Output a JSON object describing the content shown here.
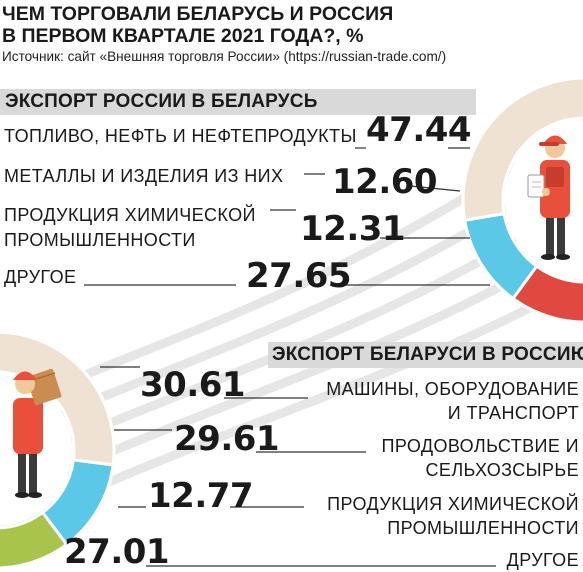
{
  "title_line1": "ЧЕМ ТОРГОВАЛИ БЕЛАРУСЬ И РОССИЯ",
  "title_line2": "В ПЕРВОМ КВАРТАЛЕ 2021 ГОДА?, %",
  "source": "Источник: сайт «Внешняя торговля России» (https://russian-trade.com/)",
  "chart_data": [
    {
      "type": "pie",
      "title": "ЭКСПОРТ РОССИИ В БЕЛАРУСЬ",
      "unit": "%",
      "categories": [
        "ТОПЛИВО, НЕФТЬ И НЕФТЕПРОДУКТЫ",
        "МЕТАЛЛЫ И ИЗДЕЛИЯ ИЗ НИХ",
        "ПРОДУКЦИЯ ХИМИЧЕСКОЙ ПРОМЫШЛЕННОСТИ",
        "ДРУГОЕ"
      ],
      "category_lines": [
        [
          "ТОПЛИВО, НЕФТЬ И НЕФТЕПРОДУКТЫ"
        ],
        [
          "МЕТАЛЛЫ И ИЗДЕЛИЯ ИЗ НИХ"
        ],
        [
          "ПРОДУКЦИЯ ХИМИЧЕСКОЙ",
          "ПРОМЫШЛЕННОСТИ"
        ],
        [
          "ДРУГОЕ"
        ]
      ],
      "labels": [
        "47.44",
        "12.60",
        "12.31",
        "27.65"
      ],
      "values": [
        47.44,
        12.6,
        12.31,
        27.65
      ],
      "colors": [
        "#f5a83a",
        "#e0493f",
        "#5bc8e8",
        "#f0e2d3"
      ]
    },
    {
      "type": "pie",
      "title": "ЭКСПОРТ БЕЛАРУСИ В РОССИЮ",
      "unit": "%",
      "categories": [
        "МАШИНЫ, ОБОРУДОВАНИЕ И ТРАНСПОРТ",
        "ПРОДОВОЛЬСТВИЕ И СЕЛЬХОЗСЫРЬЕ",
        "ПРОДУКЦИЯ ХИМИЧЕСКОЙ ПРОМЫШЛЕННОСТИ",
        "ДРУГОЕ"
      ],
      "category_lines": [
        [
          "МАШИНЫ, ОБОРУДОВАНИЕ",
          "И ТРАНСПОРТ"
        ],
        [
          "ПРОДОВОЛЬСТВИЕ И",
          "СЕЛЬХОЗСЫРЬЕ"
        ],
        [
          "ПРОДУКЦИЯ ХИМИЧЕСКОЙ",
          "ПРОМЫШЛЕННОСТИ"
        ],
        [
          "ДРУГОЕ"
        ]
      ],
      "labels": [
        "30.61",
        "29.61",
        "12.77",
        "27.01"
      ],
      "values": [
        30.61,
        29.61,
        12.77,
        27.01
      ],
      "colors": [
        "#a57a4d",
        "#a9c44a",
        "#5bc8e8",
        "#f0e2d3"
      ]
    }
  ]
}
